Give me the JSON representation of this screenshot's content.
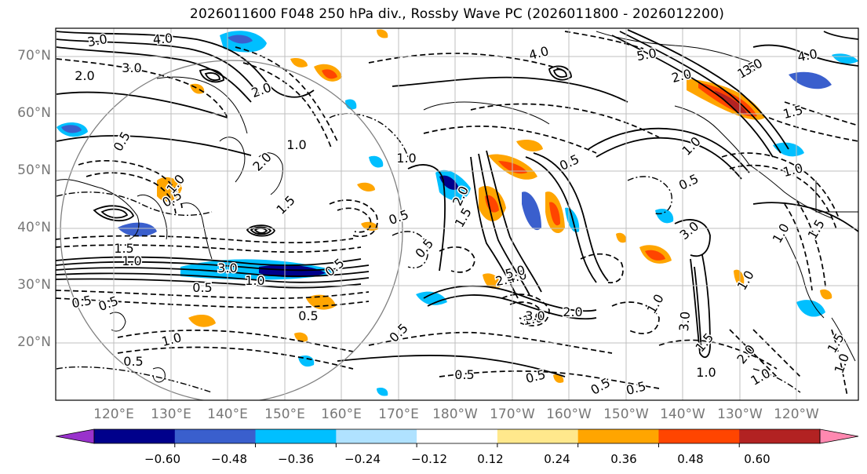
{
  "title": "2026011600 F048 250 hPa div., Rossby Wave PC (2026011800 - 2026012200)",
  "lat_labels": [
    "70°N",
    "60°N",
    "50°N",
    "40°N",
    "30°N",
    "20°N"
  ],
  "lon_labels": [
    "120°E",
    "130°E",
    "140°E",
    "150°E",
    "160°E",
    "170°E",
    "180°W",
    "170°W",
    "160°W",
    "150°W",
    "140°W",
    "130°W",
    "120°W"
  ],
  "colorbar": {
    "ticks": [
      "−0.60",
      "−0.48",
      "−0.36",
      "−0.24",
      "−0.12",
      "0.12",
      "0.24",
      "0.36",
      "0.48",
      "0.60"
    ],
    "colors": [
      "#9932CC",
      "#00008B",
      "#3A5FCD",
      "#00BFFF",
      "#B0E2FF",
      "#FFFFFF",
      "#FFE88C",
      "#FFA500",
      "#FF4500",
      "#B22222",
      "#FF88B0"
    ]
  },
  "contour_labels": [
    "3.0",
    "4.0",
    "2.0",
    "3.0",
    "2.0",
    "1.0",
    "0.5",
    "0.5",
    "1.0",
    "2.0",
    "1.5",
    "3.0",
    "0.5",
    "1.0",
    "1.5",
    "1.0",
    "0.5",
    "0.5",
    "1.0",
    "0.5",
    "0.5",
    "0.5",
    "4.0",
    "5.0",
    "2.0",
    "1.5",
    "3.0",
    "4.0",
    "1.5",
    "1.0",
    "0.5",
    "3.0",
    "2.0",
    "1.0",
    "0.5",
    "0.5",
    "1.5",
    "2.0",
    "1.0",
    "0.5",
    "0.5",
    "0.5",
    "2.0",
    "1.5",
    "1.0",
    "3.0",
    "1.0",
    "1.0",
    "1.0",
    "0.5",
    "4.0",
    "3.0",
    "5.0",
    "1.0",
    "0.5",
    "0.5",
    "1.0",
    "1.5",
    "2.0",
    "1.5",
    "1.0"
  ],
  "colors": {
    "frame": "#000000",
    "grid": "#bfbfbf",
    "contour": "#000000",
    "circle": "#808080",
    "coast": "#000000"
  }
}
